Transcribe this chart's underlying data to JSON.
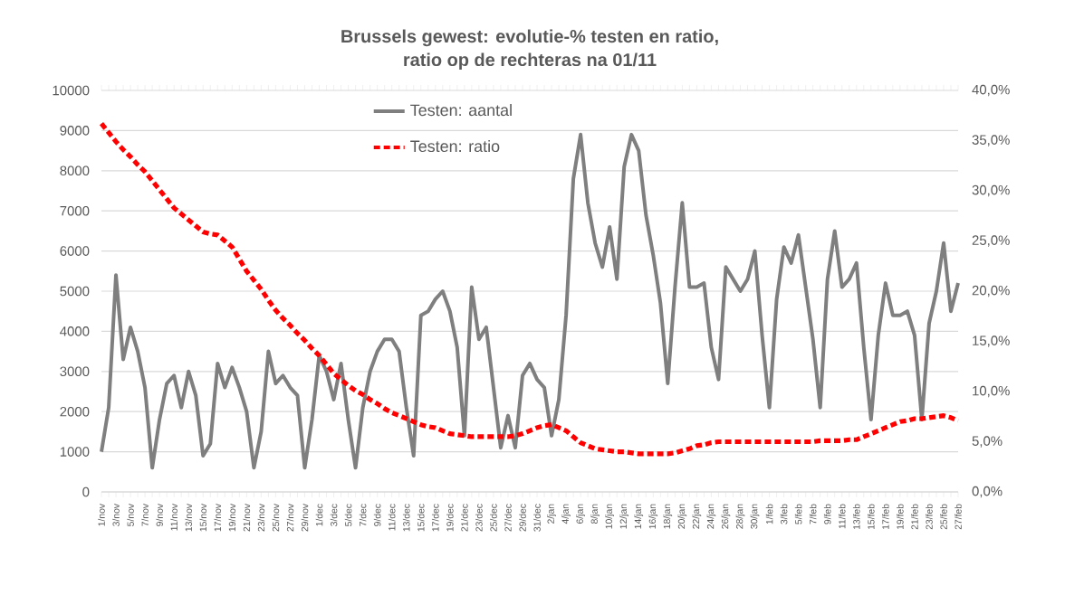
{
  "chart_data": {
    "type": "line",
    "title": "Brussels gewest: evolutie-% testen en ratio,",
    "subtitle": "ratio op de rechteras na 01/11",
    "categories": [
      "1/nov",
      null,
      "3/nov",
      null,
      "5/nov",
      null,
      "7/nov",
      null,
      "9/nov",
      null,
      "11/nov",
      null,
      "13/nov",
      null,
      "15/nov",
      null,
      "17/nov",
      null,
      "19/nov",
      null,
      "21/nov",
      null,
      "23/nov",
      null,
      "25/nov",
      null,
      "27/nov",
      null,
      "29/nov",
      null,
      "1/dec",
      null,
      "3/dec",
      null,
      "5/dec",
      null,
      "7/dec",
      null,
      "9/dec",
      null,
      "11/dec",
      null,
      "13/dec",
      null,
      "15/dec",
      null,
      "17/dec",
      null,
      "19/dec",
      null,
      "21/dec",
      null,
      "23/dec",
      null,
      "25/dec",
      null,
      "27/dec",
      null,
      "29/dec",
      null,
      "31/dec",
      null,
      "2/jan",
      null,
      "4/jan",
      null,
      "6/jan",
      null,
      "8/jan",
      null,
      "10/jan",
      null,
      "12/jan",
      null,
      "14/jan",
      null,
      "16/jan",
      null,
      "18/jan",
      null,
      "20/jan",
      null,
      "22/jan",
      null,
      "24/jan",
      null,
      "26/jan",
      null,
      "28/jan",
      null,
      "30/jan",
      null,
      "1/feb",
      null,
      "3/feb",
      null,
      "5/feb",
      null,
      "7/feb",
      null,
      "9/feb",
      null,
      "11/feb",
      null,
      "13/feb",
      null,
      "15/feb",
      null,
      "17/feb",
      null,
      "19/feb",
      null,
      "21/feb",
      null,
      "23/feb",
      null,
      "25/feb",
      null,
      "27/feb"
    ],
    "series": [
      {
        "name": "Testen: aantal",
        "color": "#7f7f7f",
        "line_style": "solid",
        "values": [
          1000,
          2100,
          5400,
          3300,
          4100,
          3500,
          2600,
          600,
          1800,
          2700,
          2900,
          2100,
          3000,
          2400,
          900,
          1200,
          3200,
          2600,
          3100,
          2600,
          2000,
          600,
          1500,
          3500,
          2700,
          2900,
          2600,
          2400,
          600,
          1800,
          3400,
          3000,
          2300,
          3200,
          1800,
          600,
          2100,
          3000,
          3500,
          3800,
          3800,
          3500,
          2100,
          900,
          4400,
          4500,
          4800,
          5000,
          4500,
          3600,
          1400,
          5100,
          3800,
          4100,
          2600,
          1100,
          1900,
          1100,
          2900,
          3200,
          2800,
          2600,
          1400,
          2300,
          4400,
          7800,
          8900,
          7200,
          6200,
          5600,
          6600,
          5300,
          8100,
          8900,
          8500,
          6900,
          5900,
          4700,
          2700,
          5100,
          7200,
          5100,
          5100,
          5200,
          3600,
          2800,
          5600,
          5300,
          5000,
          5300,
          6000,
          3900,
          2100,
          4800,
          6100,
          5700,
          6400,
          5100,
          3800,
          2100,
          5300,
          6500,
          5100,
          5300,
          5700,
          3600,
          1800,
          3900,
          5200,
          4400,
          4400,
          4500,
          3900,
          1800,
          4200,
          5000,
          6200,
          4500,
          5200
        ]
      },
      {
        "name": "Testen: ratio",
        "color": "#ff0000",
        "line_style": "dashed",
        "axis": "y2",
        "values": [
          36.7,
          35.8,
          34.9,
          34.1,
          33.4,
          32.6,
          31.9,
          31.0,
          30.1,
          29.2,
          28.3,
          27.7,
          27.1,
          26.5,
          25.9,
          25.7,
          25.6,
          25.0,
          24.4,
          23.2,
          22.0,
          21.1,
          20.2,
          19.1,
          18.1,
          17.3,
          16.6,
          15.8,
          15.1,
          14.3,
          13.6,
          12.7,
          11.8,
          11.2,
          10.6,
          10.1,
          9.7,
          9.2,
          8.8,
          8.3,
          7.9,
          7.6,
          7.3,
          7.0,
          6.7,
          6.5,
          6.4,
          6.1,
          5.8,
          5.7,
          5.6,
          5.5,
          5.5,
          5.5,
          5.5,
          5.5,
          5.5,
          5.6,
          5.8,
          6.1,
          6.4,
          6.6,
          6.7,
          6.4,
          6.1,
          5.5,
          4.9,
          4.6,
          4.3,
          4.2,
          4.1,
          4.0,
          4.0,
          3.9,
          3.8,
          3.8,
          3.8,
          3.8,
          3.8,
          3.9,
          4.1,
          4.3,
          4.6,
          4.7,
          4.9,
          5.0,
          5.0,
          5.0,
          5.0,
          5.0,
          5.0,
          5.0,
          5.0,
          5.0,
          5.0,
          5.0,
          5.0,
          5.0,
          5.0,
          5.1,
          5.1,
          5.1,
          5.1,
          5.2,
          5.2,
          5.5,
          5.8,
          6.1,
          6.4,
          6.7,
          7.0,
          7.1,
          7.3,
          7.3,
          7.4,
          7.5,
          7.6,
          7.4,
          7.1
        ]
      }
    ],
    "ylim": [
      0,
      10000
    ],
    "yticks": [
      0,
      1000,
      2000,
      3000,
      4000,
      5000,
      6000,
      7000,
      8000,
      9000,
      10000
    ],
    "y2lim": [
      0,
      40
    ],
    "y2ticks": [
      {
        "value": 0,
        "label": "0,0%"
      },
      {
        "value": 5,
        "label": "5,0%"
      },
      {
        "value": 10,
        "label": "10,0%"
      },
      {
        "value": 15,
        "label": "15,0%"
      },
      {
        "value": 20,
        "label": "20,0%"
      },
      {
        "value": 25,
        "label": "25,0%"
      },
      {
        "value": 30,
        "label": "30,0%"
      },
      {
        "value": 35,
        "label": "35,0%"
      },
      {
        "value": 40,
        "label": "40,0%"
      }
    ],
    "grid": "y",
    "legend": "top"
  }
}
